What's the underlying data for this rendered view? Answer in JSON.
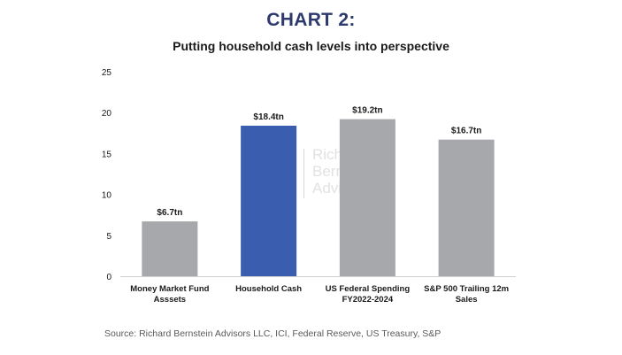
{
  "header": {
    "title": "CHART 2:",
    "subtitle": "Putting household cash levels into perspective"
  },
  "footer": {
    "source": "Source: Richard Bernstein Advisors LLC, ICI, Federal Reserve, US Treasury, S&P"
  },
  "watermark": {
    "lines": [
      "Rich",
      "Bern",
      "Advi"
    ]
  },
  "colors": {
    "gray": "#a6a8ab",
    "blue": "#3b5daf",
    "axis": "#d0d0d0",
    "text": "#1a1a1a"
  },
  "chart_data": {
    "type": "bar",
    "categories": [
      [
        "Money Market Fund",
        "Asssets"
      ],
      [
        "Household Cash"
      ],
      [
        "US Federal Spending",
        "FY2022-2024"
      ],
      [
        "S&P 500 Trailing 12m",
        "Sales"
      ]
    ],
    "values": [
      6.7,
      18.4,
      19.2,
      16.7
    ],
    "data_labels": [
      "$6.7tn",
      "$18.4tn",
      "$19.2tn",
      "$16.7tn"
    ],
    "highlight_index": 1,
    "ylim": [
      0,
      25
    ],
    "yticks": [
      0,
      5,
      10,
      15,
      20,
      25
    ],
    "grid": false,
    "xlabel": "",
    "ylabel": ""
  }
}
